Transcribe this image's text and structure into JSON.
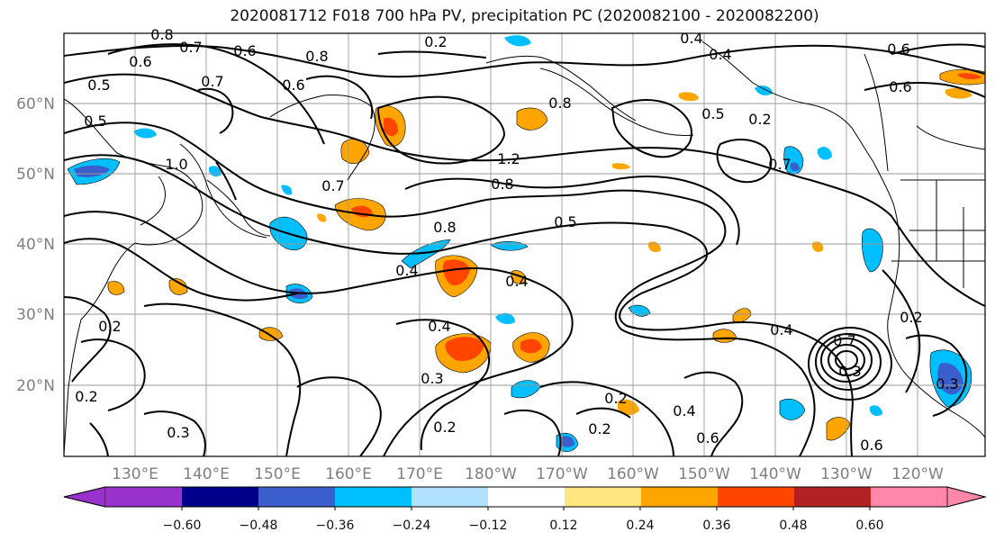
{
  "title": "2020081712 F018 700 hPa PV, precipitation PC (2020082100 - 2020082200)",
  "map": {
    "lat_ticks": [
      "60°N",
      "50°N",
      "40°N",
      "30°N",
      "20°N"
    ],
    "lon_ticks": [
      "130°E",
      "140°E",
      "150°E",
      "160°E",
      "170°E",
      "180°W",
      "170°W",
      "160°W",
      "150°W",
      "140°W",
      "130°W",
      "120°W"
    ],
    "contour_labels": [
      "0.8",
      "0.7",
      "0.6",
      "0.5",
      "0.6",
      "0.7",
      "0.8",
      "0.6",
      "1.0",
      "0.5",
      "0.7",
      "0.8",
      "1.2",
      "0.8",
      "0.5",
      "0.7",
      "0.4",
      "0.8",
      "0.4",
      "0.4",
      "0.3",
      "0.2",
      "0.2",
      "0.3",
      "0.2",
      "0.4",
      "0.2",
      "0.2",
      "0.6",
      "0.5",
      "0.4",
      "0.6",
      "0.6",
      "0.6",
      "0.2",
      "0.3",
      "0.2",
      "0.7",
      "0.4",
      "0.2",
      "0.3",
      "0.4"
    ]
  },
  "colorbar": {
    "tick_labels": [
      "−0.60",
      "−0.48",
      "−0.36",
      "−0.24",
      "−0.12",
      "0.12",
      "0.24",
      "0.36",
      "0.48",
      "0.60"
    ],
    "colors": [
      "#9932cc",
      "#00008b",
      "#3a5fcd",
      "#00bfff",
      "#b0e2ff",
      "#ffffff",
      "#ffe680",
      "#ffa500",
      "#ff4500",
      "#b22222",
      "#ff88aa"
    ]
  }
}
